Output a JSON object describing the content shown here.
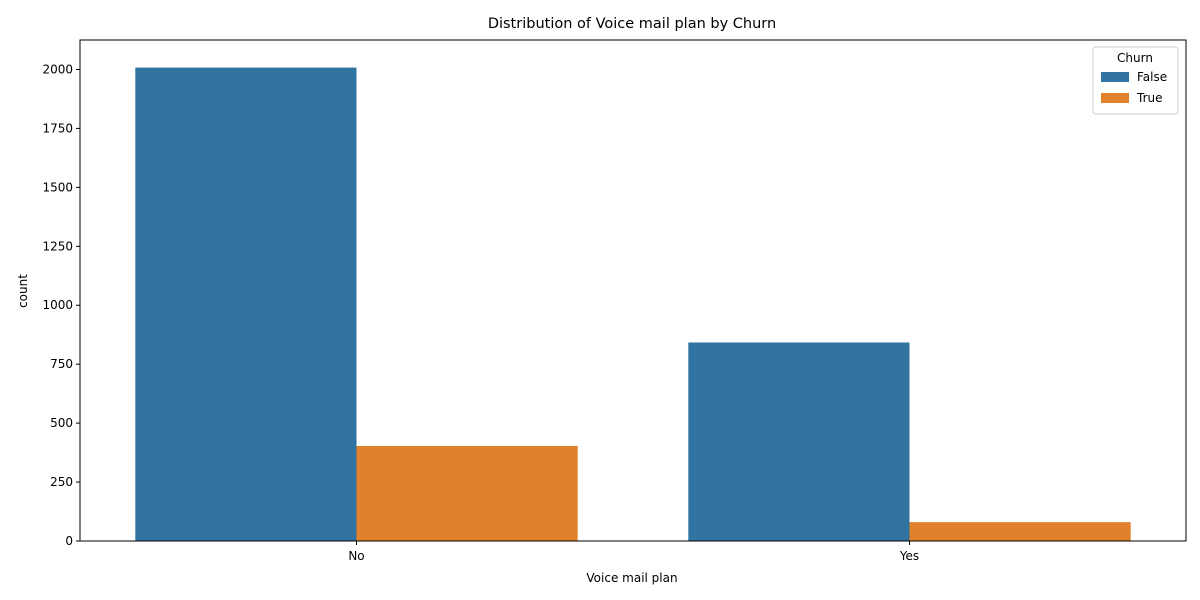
{
  "chart_data": {
    "type": "bar",
    "title": "Distribution of Voice mail plan by Churn",
    "xlabel": "Voice mail plan",
    "ylabel": "count",
    "categories": [
      "No",
      "Yes"
    ],
    "series": [
      {
        "name": "False",
        "values": [
          2008,
          842
        ],
        "color": "#3274a1"
      },
      {
        "name": "True",
        "values": [
          403,
          80
        ],
        "color": "#e1812c"
      }
    ],
    "ylim": [
      0,
      2125
    ],
    "yticks": [
      0,
      250,
      500,
      750,
      1000,
      1250,
      1500,
      1750,
      2000
    ],
    "legend": {
      "title": "Churn",
      "position": "top-right"
    },
    "grid": false
  }
}
